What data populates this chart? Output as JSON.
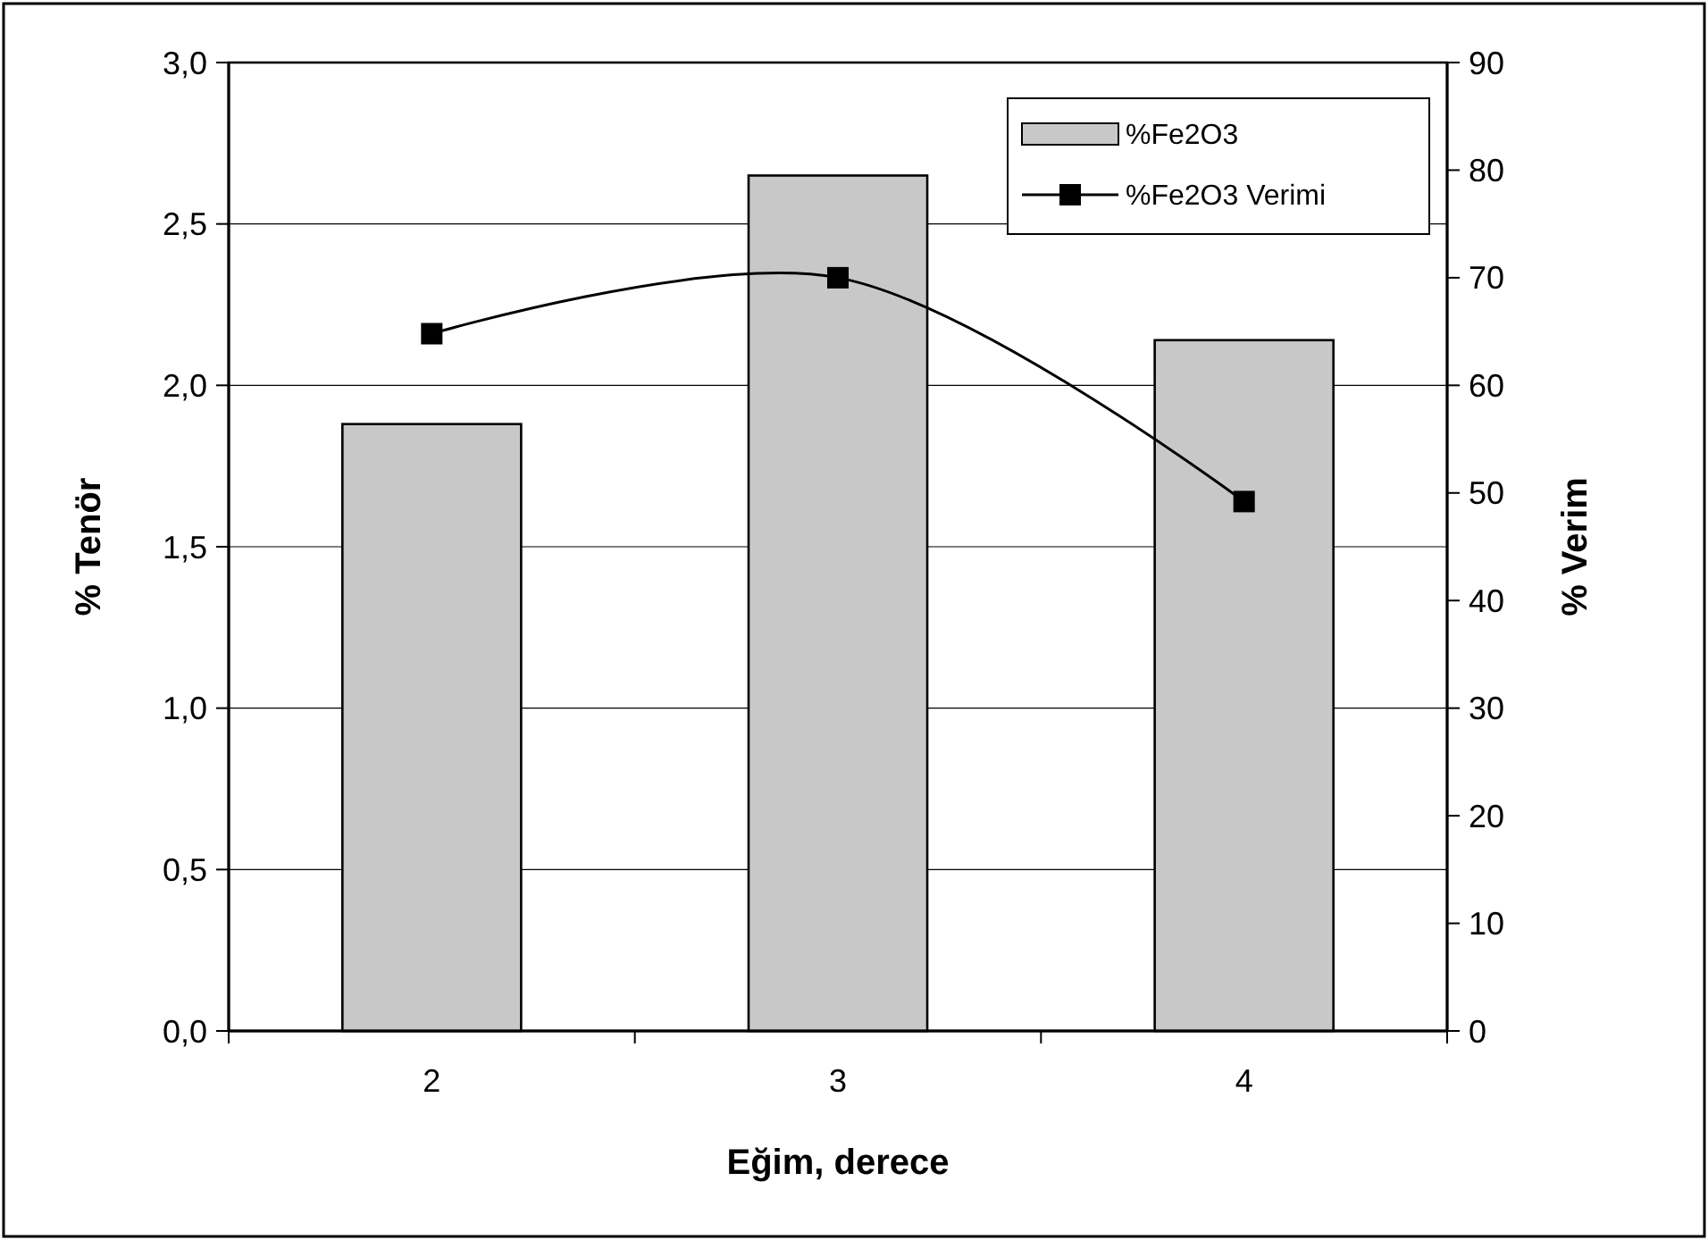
{
  "chart_data": {
    "type": "bar",
    "xlabel": "Eğim, derece",
    "ylabel": "% Tenör",
    "y2label": "% Verim",
    "categories": [
      "2",
      "3",
      "4"
    ],
    "series": [
      {
        "name": "%Fe2O3",
        "color": "#c8c8c8",
        "values": [
          1.88,
          2.65,
          2.14
        ]
      },
      {
        "name": "%Fe2O3 Verimi",
        "type": "line",
        "axis": "y2",
        "color": "#000000",
        "values": [
          64.8,
          70.0,
          49.2
        ],
        "marker": "square"
      }
    ],
    "ylim": [
      0,
      3
    ],
    "yticks": [
      {
        "value": 0,
        "label": "0,0"
      },
      {
        "value": 0.5,
        "label": "0,5"
      },
      {
        "value": 1,
        "label": "1,0"
      },
      {
        "value": 1.5,
        "label": "1,5"
      },
      {
        "value": 2,
        "label": "2,0"
      },
      {
        "value": 2.5,
        "label": "2,5"
      },
      {
        "value": 3,
        "label": "3,0"
      }
    ],
    "y2lim": [
      0,
      90
    ],
    "y2ticks": [
      0,
      10,
      20,
      30,
      40,
      50,
      60,
      70,
      80,
      90
    ],
    "grid": "y",
    "legend": "top right"
  }
}
